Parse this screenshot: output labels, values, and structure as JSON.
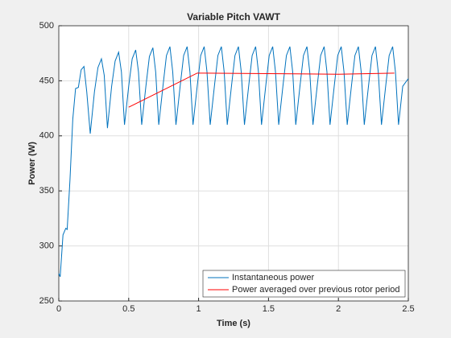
{
  "chart_data": {
    "type": "line",
    "title": "Variable Pitch VAWT",
    "xlabel": "Time (s)",
    "ylabel": "Power (W)",
    "xlim": [
      0,
      2.5
    ],
    "ylim": [
      250,
      500
    ],
    "xticks": [
      0,
      0.5,
      1,
      1.5,
      2,
      2.5
    ],
    "yticks": [
      250,
      300,
      350,
      400,
      450,
      500
    ],
    "grid": true,
    "legend": "southeast",
    "series": [
      {
        "name": "Instantaneous power",
        "color": "#0072bd",
        "x": [
          0,
          0.01,
          0.03,
          0.05,
          0.06,
          0.08,
          0.1,
          0.12,
          0.14,
          0.16,
          0.18,
          0.2,
          0.225,
          0.255,
          0.28,
          0.305,
          0.325,
          0.348,
          0.378,
          0.403,
          0.428,
          0.448,
          0.47,
          0.5,
          0.525,
          0.55,
          0.57,
          0.593,
          0.623,
          0.648,
          0.673,
          0.693,
          0.715,
          0.745,
          0.77,
          0.795,
          0.815,
          0.838,
          0.868,
          0.893,
          0.918,
          0.938,
          0.96,
          0.99,
          1.015,
          1.04,
          1.06,
          1.083,
          1.113,
          1.138,
          1.163,
          1.183,
          1.205,
          1.235,
          1.26,
          1.285,
          1.305,
          1.328,
          1.358,
          1.383,
          1.408,
          1.428,
          1.45,
          1.48,
          1.505,
          1.53,
          1.55,
          1.573,
          1.603,
          1.628,
          1.653,
          1.673,
          1.695,
          1.725,
          1.75,
          1.775,
          1.795,
          1.818,
          1.848,
          1.873,
          1.898,
          1.918,
          1.94,
          1.97,
          1.995,
          2.02,
          2.04,
          2.063,
          2.093,
          2.118,
          2.143,
          2.163,
          2.185,
          2.215,
          2.24,
          2.265,
          2.285,
          2.308,
          2.338,
          2.363,
          2.388,
          2.408,
          2.43,
          2.46,
          2.5
        ],
        "values": [
          275,
          272,
          310,
          316,
          315,
          360,
          415,
          443,
          444,
          460,
          463,
          440,
          402,
          440,
          462,
          470,
          455,
          407,
          445,
          468,
          476,
          458,
          410,
          445,
          470,
          478,
          458,
          410,
          445,
          472,
          480,
          458,
          410,
          445,
          473,
          481,
          458,
          410,
          445,
          473,
          481,
          458,
          410,
          445,
          473,
          481,
          458,
          410,
          445,
          473,
          481,
          458,
          410,
          445,
          473,
          481,
          458,
          410,
          445,
          473,
          481,
          458,
          410,
          445,
          473,
          481,
          458,
          410,
          445,
          473,
          481,
          458,
          410,
          445,
          473,
          481,
          458,
          410,
          445,
          473,
          481,
          458,
          410,
          445,
          473,
          481,
          458,
          410,
          445,
          473,
          481,
          458,
          410,
          445,
          473,
          481,
          458,
          410,
          445,
          473,
          481,
          458,
          410,
          445,
          452
        ]
      },
      {
        "name": "Power averaged over previous rotor period",
        "color": "#ff0000",
        "x": [
          0.5,
          0.99,
          1.5,
          2.0,
          2.4
        ],
        "values": [
          426,
          457,
          456.5,
          456,
          457
        ]
      }
    ]
  }
}
